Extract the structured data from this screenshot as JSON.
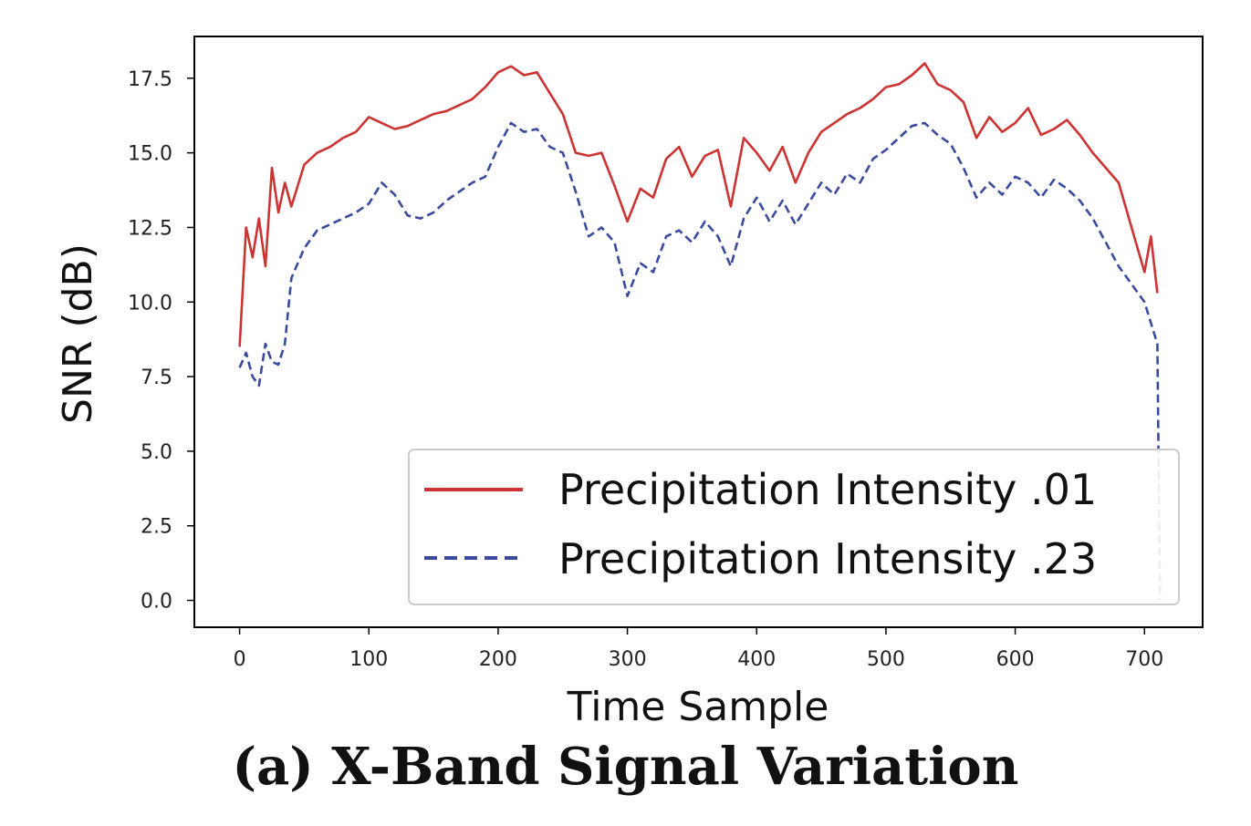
{
  "caption": "(a) X-Band Signal Variation",
  "chart_data": {
    "type": "line",
    "xlabel": "Time Sample",
    "ylabel": "SNR (dB)",
    "xlim": [
      -35,
      745
    ],
    "ylim": [
      -0.9,
      18.9
    ],
    "xticks": [
      0,
      100,
      200,
      300,
      400,
      500,
      600,
      700
    ],
    "yticks": [
      0.0,
      2.5,
      5.0,
      7.5,
      10.0,
      12.5,
      15.0,
      17.5
    ],
    "ytick_labels": [
      "0.0",
      "2.5",
      "5.0",
      "7.5",
      "10.0",
      "12.5",
      "15.0",
      "17.5"
    ],
    "grid": false,
    "legend_position": "lower-right",
    "series": [
      {
        "name": "Precipitation Intensity .01",
        "color": "#cc3333",
        "style": "solid",
        "x": [
          0,
          5,
          10,
          15,
          20,
          25,
          30,
          35,
          40,
          50,
          60,
          70,
          80,
          90,
          100,
          110,
          120,
          130,
          140,
          150,
          160,
          170,
          180,
          190,
          200,
          210,
          220,
          230,
          240,
          250,
          260,
          270,
          280,
          290,
          300,
          310,
          320,
          330,
          340,
          350,
          360,
          370,
          380,
          390,
          400,
          410,
          420,
          430,
          440,
          450,
          460,
          470,
          480,
          490,
          500,
          510,
          520,
          530,
          540,
          550,
          560,
          570,
          580,
          590,
          600,
          610,
          620,
          630,
          640,
          650,
          660,
          670,
          680,
          690,
          700,
          705,
          710
        ],
        "values": [
          8.5,
          12.5,
          11.5,
          12.8,
          11.2,
          14.5,
          13.0,
          14.0,
          13.2,
          14.6,
          15.0,
          15.2,
          15.5,
          15.7,
          16.2,
          16.0,
          15.8,
          15.9,
          16.1,
          16.3,
          16.4,
          16.6,
          16.8,
          17.2,
          17.7,
          17.9,
          17.6,
          17.7,
          17.0,
          16.3,
          15.0,
          14.9,
          15.0,
          13.9,
          12.7,
          13.8,
          13.5,
          14.8,
          15.2,
          14.2,
          14.9,
          15.1,
          13.2,
          15.5,
          15.0,
          14.4,
          15.2,
          14.0,
          15.0,
          15.7,
          16.0,
          16.3,
          16.5,
          16.8,
          17.2,
          17.3,
          17.6,
          18.0,
          17.3,
          17.1,
          16.7,
          15.5,
          16.2,
          15.7,
          16.0,
          16.5,
          15.6,
          15.8,
          16.1,
          15.6,
          15.0,
          14.5,
          14.0,
          12.5,
          11.0,
          12.2,
          10.3
        ]
      },
      {
        "name": "Precipitation Intensity .23",
        "color": "#3b4a9c",
        "style": "dashed",
        "x": [
          0,
          5,
          10,
          15,
          20,
          25,
          30,
          35,
          40,
          50,
          60,
          70,
          80,
          90,
          100,
          110,
          120,
          130,
          140,
          150,
          160,
          170,
          180,
          190,
          200,
          210,
          220,
          230,
          240,
          250,
          260,
          270,
          280,
          290,
          300,
          310,
          320,
          330,
          340,
          350,
          360,
          370,
          380,
          390,
          400,
          410,
          420,
          430,
          440,
          450,
          460,
          470,
          480,
          490,
          500,
          510,
          520,
          530,
          540,
          550,
          560,
          570,
          580,
          590,
          600,
          610,
          620,
          630,
          640,
          650,
          660,
          670,
          680,
          690,
          700,
          705,
          710,
          712
        ],
        "values": [
          7.8,
          8.3,
          7.5,
          7.2,
          8.6,
          8.0,
          7.9,
          8.6,
          10.8,
          11.8,
          12.4,
          12.6,
          12.8,
          13.0,
          13.3,
          14.0,
          13.6,
          12.9,
          12.8,
          13.0,
          13.4,
          13.7,
          14.0,
          14.2,
          15.2,
          16.0,
          15.7,
          15.8,
          15.2,
          15.0,
          13.7,
          12.2,
          12.5,
          12.0,
          10.2,
          11.3,
          11.0,
          12.2,
          12.4,
          12.0,
          12.7,
          12.2,
          11.2,
          12.8,
          13.5,
          12.7,
          13.4,
          12.6,
          13.3,
          14.0,
          13.6,
          14.3,
          14.0,
          14.8,
          15.1,
          15.5,
          15.9,
          16.0,
          15.6,
          15.3,
          14.5,
          13.5,
          14.0,
          13.6,
          14.2,
          14.0,
          13.5,
          14.1,
          13.8,
          13.4,
          12.8,
          12.0,
          11.2,
          10.6,
          10.0,
          9.3,
          8.6,
          0.0
        ]
      }
    ]
  }
}
